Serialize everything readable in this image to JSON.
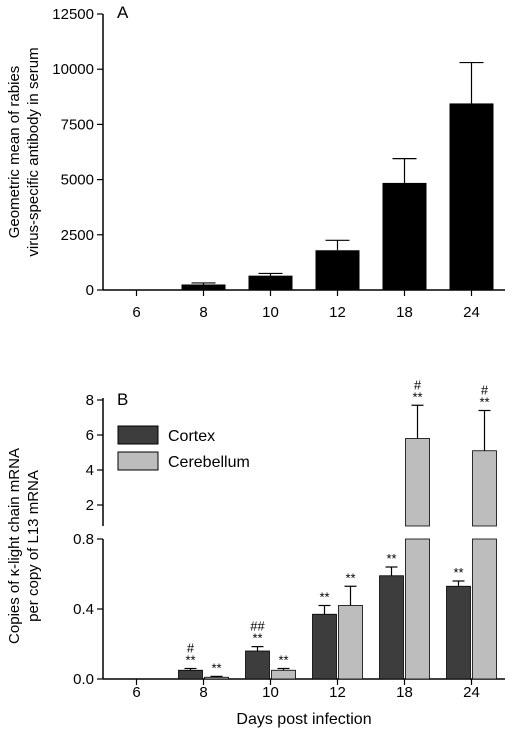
{
  "chart_data": [
    {
      "type": "bar",
      "panel_label": "A",
      "categories": [
        "6",
        "8",
        "10",
        "12",
        "18",
        "24"
      ],
      "values": [
        0,
        250,
        650,
        1800,
        4850,
        8450
      ],
      "errors": [
        0,
        70,
        100,
        450,
        1100,
        1850
      ],
      "ylabel": [
        "Geometric mean of rabies",
        "virus-specific antibody in serum"
      ],
      "xlabel": "",
      "yticks": [
        "0",
        "2500",
        "5000",
        "7500",
        "10000",
        "12500"
      ],
      "ylim": [
        0,
        12500
      ],
      "color": "#000000"
    },
    {
      "type": "bar",
      "panel_label": "B",
      "categories": [
        "6",
        "8",
        "10",
        "12",
        "18",
        "24"
      ],
      "series": [
        {
          "name": "Cortex",
          "color": "#3d3d3d",
          "values": [
            0,
            0.05,
            0.16,
            0.37,
            0.59,
            0.53
          ],
          "errors": [
            0,
            0.01,
            0.025,
            0.05,
            0.05,
            0.03
          ],
          "annotations": [
            [
              "",
              ""
            ],
            [
              "#",
              "**"
            ],
            [
              "##",
              "**"
            ],
            [
              "",
              "**"
            ],
            [
              "",
              "**"
            ],
            [
              "",
              "**"
            ]
          ]
        },
        {
          "name": "Cerebellum",
          "color": "#bdbdbd",
          "values": [
            0,
            0.01,
            0.05,
            0.42,
            5.8,
            5.1
          ],
          "errors": [
            0,
            0.005,
            0.01,
            0.11,
            1.9,
            2.3
          ],
          "annotations": [
            [
              "",
              ""
            ],
            [
              "",
              "**"
            ],
            [
              "",
              "**"
            ],
            [
              "",
              "**"
            ],
            [
              "#",
              "**"
            ],
            [
              "#",
              "**"
            ]
          ]
        }
      ],
      "ylabel": [
        "Copies of κ-light chain mRNA",
        "per copy of L13 mRNA"
      ],
      "xlabel": "Days post infection",
      "yticks_lower": [
        "0.0",
        "0.4",
        "0.8"
      ],
      "yticks_upper": [
        "2",
        "4",
        "6",
        "8"
      ],
      "ylim_lower": [
        0,
        0.8
      ],
      "ylim_upper": [
        1,
        8
      ],
      "axis_break": true,
      "legend_position": "top-left"
    }
  ]
}
